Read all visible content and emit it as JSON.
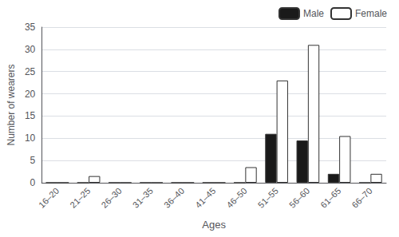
{
  "chart_data": {
    "type": "bar",
    "xlabel": "Ages",
    "ylabel": "Number of wearers",
    "categories": [
      "16–20",
      "21–25",
      "26–30",
      "31–35",
      "36–40",
      "41–45",
      "46–50",
      "51–55",
      "56–60",
      "61–65",
      "66–70"
    ],
    "series": [
      {
        "name": "Male",
        "color": "#1a1a1a",
        "values": [
          0,
          0,
          0,
          0,
          0,
          0,
          0,
          11,
          9.5,
          2,
          0
        ]
      },
      {
        "name": "Female",
        "color": "#ffffff",
        "values": [
          0,
          1.5,
          0,
          0,
          0,
          0,
          3.5,
          23,
          31,
          10.5,
          2
        ]
      }
    ],
    "ylim": [
      0,
      35
    ],
    "yticks": [
      0,
      5,
      10,
      15,
      20,
      25,
      30,
      35
    ],
    "grid": true,
    "legend": "upper right"
  }
}
